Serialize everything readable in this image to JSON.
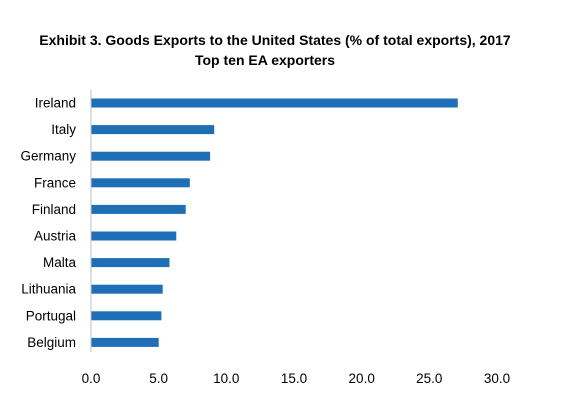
{
  "chart_data": {
    "type": "bar",
    "orientation": "horizontal",
    "title": "Exhibit 3. Goods Exports to the United States (% of total exports), 2017",
    "subtitle": "Top ten EA exporters",
    "xlabel": "",
    "ylabel": "",
    "categories": [
      "Ireland",
      "Italy",
      "Germany",
      "France",
      "Finland",
      "Austria",
      "Malta",
      "Lithuania",
      "Portugal",
      "Belgium"
    ],
    "values": [
      27.1,
      9.1,
      8.8,
      7.3,
      7.0,
      6.3,
      5.8,
      5.3,
      5.2,
      5.0
    ],
    "xlim": [
      0,
      30
    ],
    "xticks": [
      "0.0",
      "5.0",
      "10.0",
      "15.0",
      "20.0",
      "25.0",
      "30.0"
    ],
    "grid": false,
    "legend": "none",
    "bar_color": "#1F6FB7",
    "axis_color": "#BFBFBF"
  }
}
